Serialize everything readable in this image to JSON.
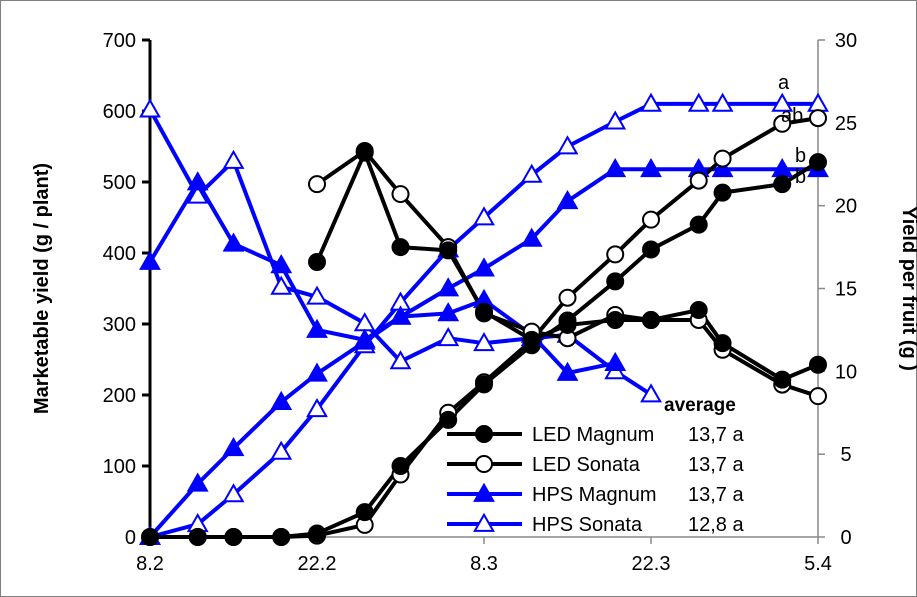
{
  "chart_data": {
    "type": "line",
    "xlabel": "",
    "ylabel_left": "Marketable yield (g / plant)",
    "ylabel_right": "Yield per fruit (g )",
    "x_tick_labels": [
      {
        "day": 0,
        "label": "8.2"
      },
      {
        "day": 14,
        "label": "22.2"
      },
      {
        "day": 28,
        "label": "8.3"
      },
      {
        "day": 42,
        "label": "22.3"
      },
      {
        "day": 56,
        "label": "5.4"
      }
    ],
    "xlim": [
      0,
      56
    ],
    "ylim_left": [
      0,
      700
    ],
    "ylim_right": [
      0,
      30
    ],
    "yticks_left": [
      0,
      100,
      200,
      300,
      400,
      500,
      600,
      700
    ],
    "yticks_right": [
      0,
      5,
      10,
      15,
      20,
      25,
      30
    ],
    "legend": {
      "title": "average",
      "position": "bottom-right",
      "entries": [
        {
          "name": "LED Magnum",
          "value": "13,7 a"
        },
        {
          "name": "LED Sonata",
          "value": "13,7 a"
        },
        {
          "name": "HPS Magnum",
          "value": "13,7 a"
        },
        {
          "name": "HPS Sonata",
          "value": "12,8 a"
        }
      ]
    },
    "annotations": [
      {
        "text": "a",
        "series": "HPS Sonata"
      },
      {
        "text": "ab",
        "series": "LED Sonata"
      },
      {
        "text": "b",
        "series": "LED Magnum"
      },
      {
        "text": "b",
        "series": "HPS Magnum"
      }
    ],
    "series": [
      {
        "name": "LED Magnum",
        "color": "#000000",
        "marker": "circle",
        "filled": true,
        "axis": "left",
        "x": [
          0,
          4,
          7,
          11,
          14,
          18,
          21,
          25,
          28,
          32,
          35,
          39,
          42,
          46,
          48,
          53,
          56
        ],
        "y": [
          0,
          0,
          0,
          0,
          5,
          35,
          100,
          165,
          215,
          270,
          305,
          360,
          405,
          440,
          485,
          497,
          528
        ]
      },
      {
        "name": "LED Sonata",
        "color": "#000000",
        "marker": "circle",
        "filled": false,
        "axis": "left",
        "x": [
          0,
          4,
          7,
          11,
          14,
          18,
          21,
          25,
          28,
          32,
          35,
          39,
          42,
          46,
          48,
          53,
          56
        ],
        "y": [
          0,
          0,
          0,
          0,
          2,
          17,
          88,
          175,
          218,
          277,
          337,
          398,
          447,
          502,
          533,
          582,
          590
        ]
      },
      {
        "name": "HPS Magnum",
        "color": "#0000ff",
        "marker": "triangle",
        "filled": true,
        "axis": "left",
        "x": [
          0,
          4,
          7,
          11,
          14,
          18,
          21,
          25,
          28,
          32,
          35,
          39,
          42,
          46,
          48,
          53,
          56
        ],
        "y": [
          0,
          75,
          125,
          190,
          230,
          275,
          310,
          350,
          378,
          420,
          473,
          518,
          518,
          518,
          518,
          518,
          518
        ]
      },
      {
        "name": "HPS Sonata",
        "color": "#0000ff",
        "marker": "triangle",
        "filled": false,
        "axis": "left",
        "x": [
          0,
          4,
          7,
          11,
          14,
          18,
          21,
          25,
          28,
          32,
          35,
          39,
          42,
          46,
          48,
          53,
          56
        ],
        "y": [
          0,
          18,
          60,
          120,
          180,
          270,
          330,
          405,
          450,
          510,
          550,
          585,
          610,
          610,
          610,
          610,
          610
        ]
      },
      {
        "name": "LED Magnum per fruit",
        "color": "#000000",
        "marker": "circle",
        "filled": true,
        "axis": "right",
        "x": [
          14,
          18,
          21,
          25,
          28,
          32,
          35,
          39,
          42,
          46,
          48,
          53,
          56
        ],
        "y": [
          16.6,
          23.2,
          17.5,
          17.3,
          13.6,
          11.9,
          12.8,
          13.1,
          13.1,
          13.7,
          11.7,
          9.5,
          10.4
        ]
      },
      {
        "name": "LED Sonata per fruit",
        "color": "#000000",
        "marker": "circle",
        "filled": false,
        "axis": "right",
        "x": [
          14,
          18,
          21,
          25,
          28,
          32,
          35,
          39,
          42,
          46,
          48,
          53,
          56
        ],
        "y": [
          21.3,
          23.3,
          20.7,
          17.5,
          13.5,
          12.4,
          12.0,
          13.4,
          13.1,
          13.1,
          11.3,
          9.2,
          8.5
        ]
      },
      {
        "name": "HPS Magnum per fruit",
        "color": "#0000ff",
        "marker": "triangle",
        "filled": true,
        "axis": "right",
        "x": [
          0,
          4,
          7,
          11,
          14,
          18,
          21,
          25,
          28,
          32,
          35,
          39
        ],
        "y": [
          16.6,
          21.4,
          17.7,
          16.4,
          12.5,
          11.9,
          13.3,
          13.5,
          14.3,
          12.2,
          9.9,
          10.5
        ]
      },
      {
        "name": "HPS Sonata per fruit",
        "color": "#0000ff",
        "marker": "triangle",
        "filled": false,
        "axis": "right",
        "x": [
          0,
          4,
          7,
          11,
          14,
          18,
          21,
          25,
          28,
          32,
          35,
          39,
          42
        ],
        "y": [
          25.8,
          20.6,
          22.7,
          15.1,
          14.5,
          12.9,
          10.6,
          12.0,
          11.7,
          12.0,
          12.2,
          10.0,
          8.6
        ]
      }
    ]
  }
}
